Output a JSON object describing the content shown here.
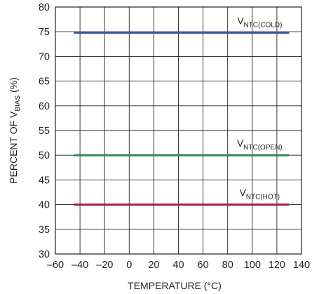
{
  "chart_data": {
    "type": "line",
    "title": "",
    "xlabel": "TEMPERATURE (°C)",
    "ylabel": {
      "prefix": "PERCENT OF V",
      "sub": "BIAS",
      "suffix": " (%)"
    },
    "xlim": [
      -60,
      140
    ],
    "ylim": [
      30,
      80
    ],
    "xticks": [
      -60,
      -40,
      -20,
      0,
      20,
      40,
      60,
      80,
      100,
      120,
      140
    ],
    "yticks": [
      30,
      35,
      40,
      45,
      50,
      55,
      60,
      65,
      70,
      75,
      80
    ],
    "xtick_labels": [
      "–60",
      "–40",
      "–20",
      "0",
      "20",
      "40",
      "60",
      "80",
      "100",
      "120",
      "140"
    ],
    "ytick_labels": [
      "30",
      "35",
      "40",
      "45",
      "50",
      "55",
      "60",
      "65",
      "70",
      "75",
      "80"
    ],
    "grid": true,
    "legend": "inline labels",
    "series": [
      {
        "name": "VNTC(COLD)",
        "label_main": "V",
        "label_sub": "NTC(COLD)",
        "color": "#3a56a5",
        "x": [
          -45,
          130
        ],
        "y": [
          74.8,
          74.8
        ]
      },
      {
        "name": "VNTC(OPEN)",
        "label_main": "V",
        "label_sub": "NTC(OPEN)",
        "color": "#2e8b57",
        "x": [
          -45,
          130
        ],
        "y": [
          50,
          50
        ]
      },
      {
        "name": "VNTC(HOT)",
        "label_main": "V",
        "label_sub": "NTC(HOT)",
        "color": "#a51c45",
        "x": [
          -45,
          130
        ],
        "y": [
          40,
          40
        ]
      }
    ]
  }
}
